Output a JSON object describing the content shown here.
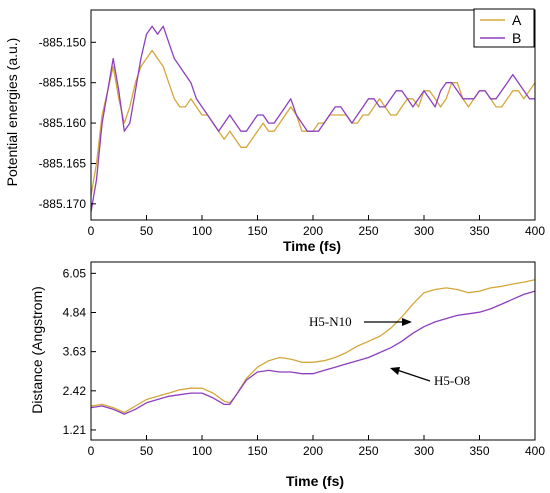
{
  "colors": {
    "series_a": "#D4A73A",
    "series_b": "#8E3FBE",
    "axis": "#000000",
    "arrow": "#000000"
  },
  "chart_data": [
    {
      "type": "line",
      "xlabel": "Time (fs)",
      "ylabel": "Potential energies (a.u.)",
      "xlim": [
        0,
        400
      ],
      "ylim": [
        -885.172,
        -885.146
      ],
      "xticks": [
        0,
        50,
        100,
        150,
        200,
        250,
        300,
        350,
        400
      ],
      "xtick_labels": [
        "0",
        "50",
        "100",
        "150",
        "200",
        "250",
        "300",
        "350",
        "400"
      ],
      "yticks": [
        -885.15,
        -885.155,
        -885.16,
        -885.165,
        -885.17
      ],
      "ytick_labels": [
        "-885.150",
        "-885.155",
        "-885.160",
        "-885.165",
        "-885.170"
      ],
      "legend": {
        "placement": "top-right",
        "entries": [
          "A",
          "B"
        ]
      },
      "grid": false,
      "series": [
        {
          "name": "A",
          "x": [
            0,
            5,
            10,
            15,
            20,
            25,
            30,
            35,
            40,
            45,
            50,
            55,
            60,
            65,
            70,
            75,
            80,
            85,
            90,
            95,
            100,
            105,
            110,
            115,
            120,
            125,
            130,
            135,
            140,
            145,
            150,
            155,
            160,
            165,
            170,
            175,
            180,
            185,
            190,
            195,
            200,
            205,
            210,
            215,
            220,
            225,
            230,
            235,
            240,
            245,
            250,
            255,
            260,
            265,
            270,
            275,
            280,
            285,
            290,
            295,
            300,
            305,
            310,
            315,
            320,
            325,
            330,
            335,
            340,
            345,
            350,
            355,
            360,
            365,
            370,
            375,
            380,
            385,
            390,
            395,
            400
          ],
          "y": [
            -885.169,
            -885.165,
            -885.159,
            -885.156,
            -885.153,
            -885.157,
            -885.16,
            -885.158,
            -885.155,
            -885.153,
            -885.152,
            -885.151,
            -885.152,
            -885.153,
            -885.155,
            -885.157,
            -885.158,
            -885.158,
            -885.157,
            -885.158,
            -885.159,
            -885.159,
            -885.16,
            -885.161,
            -885.162,
            -885.161,
            -885.162,
            -885.163,
            -885.163,
            -885.162,
            -885.161,
            -885.16,
            -885.161,
            -885.161,
            -885.16,
            -885.159,
            -885.158,
            -885.159,
            -885.161,
            -885.161,
            -885.161,
            -885.16,
            -885.16,
            -885.159,
            -885.159,
            -885.159,
            -885.159,
            -885.16,
            -885.16,
            -885.159,
            -885.159,
            -885.158,
            -885.157,
            -885.158,
            -885.159,
            -885.159,
            -885.158,
            -885.157,
            -885.157,
            -885.158,
            -885.156,
            -885.156,
            -885.157,
            -885.158,
            -885.157,
            -885.155,
            -885.155,
            -885.157,
            -885.158,
            -885.157,
            -885.156,
            -885.156,
            -885.157,
            -885.158,
            -885.158,
            -885.157,
            -885.156,
            -885.156,
            -885.157,
            -885.156,
            -885.155
          ]
        },
        {
          "name": "B",
          "x": [
            0,
            5,
            10,
            15,
            20,
            25,
            30,
            35,
            40,
            45,
            50,
            55,
            60,
            65,
            70,
            75,
            80,
            85,
            90,
            95,
            100,
            105,
            110,
            115,
            120,
            125,
            130,
            135,
            140,
            145,
            150,
            155,
            160,
            165,
            170,
            175,
            180,
            185,
            190,
            195,
            200,
            205,
            210,
            215,
            220,
            225,
            230,
            235,
            240,
            245,
            250,
            255,
            260,
            265,
            270,
            275,
            280,
            285,
            290,
            295,
            300,
            305,
            310,
            315,
            320,
            325,
            330,
            335,
            340,
            345,
            350,
            355,
            360,
            365,
            370,
            375,
            380,
            385,
            390,
            395,
            400
          ],
          "y": [
            -885.171,
            -885.167,
            -885.16,
            -885.156,
            -885.152,
            -885.156,
            -885.161,
            -885.16,
            -885.156,
            -885.152,
            -885.149,
            -885.148,
            -885.149,
            -885.148,
            -885.15,
            -885.152,
            -885.153,
            -885.154,
            -885.155,
            -885.157,
            -885.158,
            -885.159,
            -885.16,
            -885.161,
            -885.16,
            -885.159,
            -885.16,
            -885.161,
            -885.161,
            -885.16,
            -885.159,
            -885.159,
            -885.16,
            -885.16,
            -885.159,
            -885.158,
            -885.157,
            -885.159,
            -885.16,
            -885.161,
            -885.161,
            -885.161,
            -885.16,
            -885.159,
            -885.158,
            -885.158,
            -885.159,
            -885.16,
            -885.159,
            -885.158,
            -885.157,
            -885.157,
            -885.158,
            -885.158,
            -885.157,
            -885.156,
            -885.156,
            -885.157,
            -885.158,
            -885.157,
            -885.156,
            -885.157,
            -885.158,
            -885.156,
            -885.155,
            -885.155,
            -885.156,
            -885.157,
            -885.157,
            -885.157,
            -885.156,
            -885.156,
            -885.157,
            -885.157,
            -885.156,
            -885.155,
            -885.154,
            -885.155,
            -885.156,
            -885.157,
            -885.157
          ]
        }
      ]
    },
    {
      "type": "line",
      "xlabel": "Time (fs)",
      "ylabel": "Distance (Angstrom)",
      "xlim": [
        0,
        400
      ],
      "ylim": [
        0.9,
        6.4
      ],
      "xticks": [
        0,
        50,
        100,
        150,
        200,
        250,
        300,
        350,
        400
      ],
      "xtick_labels": [
        "0",
        "50",
        "100",
        "150",
        "200",
        "250",
        "300",
        "350",
        "400"
      ],
      "yticks": [
        1.21,
        2.42,
        3.63,
        4.84,
        6.05
      ],
      "ytick_labels": [
        "1.21",
        "2.42",
        "3.63",
        "4.84",
        "6.05"
      ],
      "grid": false,
      "annotations": [
        {
          "text": "H5-N10",
          "x": 298,
          "y": 5.0
        },
        {
          "text": "H5-O8",
          "x": 273,
          "y": 3.25
        }
      ],
      "series": [
        {
          "name": "H5-N10",
          "x": [
            0,
            10,
            20,
            30,
            40,
            50,
            60,
            70,
            80,
            90,
            100,
            110,
            120,
            125,
            130,
            140,
            150,
            160,
            170,
            180,
            190,
            200,
            210,
            220,
            230,
            240,
            250,
            260,
            270,
            280,
            290,
            300,
            310,
            320,
            330,
            340,
            350,
            360,
            370,
            380,
            390,
            400
          ],
          "y": [
            1.95,
            2.0,
            1.9,
            1.75,
            1.95,
            2.15,
            2.25,
            2.35,
            2.45,
            2.5,
            2.5,
            2.35,
            2.1,
            2.05,
            2.25,
            2.8,
            3.15,
            3.35,
            3.45,
            3.4,
            3.3,
            3.3,
            3.35,
            3.45,
            3.6,
            3.8,
            3.95,
            4.1,
            4.35,
            4.7,
            5.1,
            5.45,
            5.55,
            5.6,
            5.55,
            5.45,
            5.5,
            5.6,
            5.65,
            5.72,
            5.78,
            5.85
          ]
        },
        {
          "name": "H5-O8",
          "x": [
            0,
            10,
            20,
            30,
            40,
            50,
            60,
            70,
            80,
            90,
            100,
            110,
            120,
            125,
            130,
            140,
            150,
            160,
            170,
            180,
            190,
            200,
            210,
            220,
            230,
            240,
            250,
            260,
            270,
            280,
            290,
            300,
            310,
            320,
            330,
            340,
            350,
            360,
            370,
            380,
            390,
            400
          ],
          "y": [
            1.9,
            1.95,
            1.85,
            1.7,
            1.85,
            2.05,
            2.15,
            2.25,
            2.3,
            2.35,
            2.35,
            2.2,
            2.0,
            2.0,
            2.25,
            2.75,
            3.0,
            3.05,
            3.0,
            3.0,
            2.95,
            2.95,
            3.05,
            3.15,
            3.25,
            3.35,
            3.45,
            3.6,
            3.75,
            3.95,
            4.2,
            4.4,
            4.55,
            4.65,
            4.75,
            4.8,
            4.85,
            4.95,
            5.1,
            5.25,
            5.4,
            5.5
          ]
        }
      ]
    }
  ]
}
